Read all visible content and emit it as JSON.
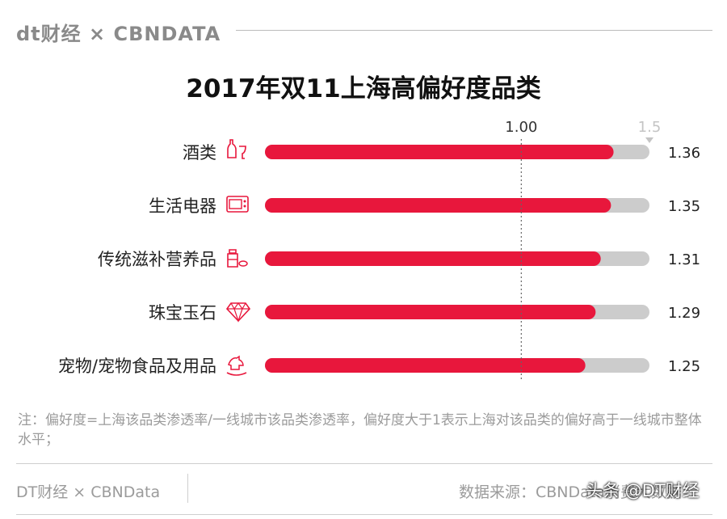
{
  "header": {
    "brand": "dt财经 × CBNDATA"
  },
  "chart_data": {
    "type": "bar",
    "orientation": "horizontal",
    "title": "2017年双11上海高偏好度品类",
    "categories": [
      "酒类",
      "生活电器",
      "传统滋补营养品",
      "珠宝玉石",
      "宠物/宠物食品及用品"
    ],
    "category_icons": [
      "wine-bottle-icon",
      "microwave-icon",
      "supplement-bottles-icon",
      "diamond-icon",
      "rocking-horse-icon"
    ],
    "values": [
      1.36,
      1.35,
      1.31,
      1.29,
      1.25
    ],
    "value_labels": [
      "1.36",
      "1.35",
      "1.31",
      "1.29",
      "1.25"
    ],
    "xlim": [
      0,
      1.5
    ],
    "reference_line": {
      "value": 1.0,
      "label": "1.00",
      "style": "dotted"
    },
    "max_marker_label": "1.5",
    "bar_color": "#e8173c",
    "track_color": "#cccccc"
  },
  "note": "注：偏好度=上海该品类渗透率/一线城市该品类渗透率，偏好度大于1表示上海对该品类的偏好高于一线城市整体水平；",
  "footer": {
    "left": "DT财经 × CBNData",
    "right": "数据来源：CBNData消费大数据"
  },
  "watermark": "头条 @DT财经"
}
